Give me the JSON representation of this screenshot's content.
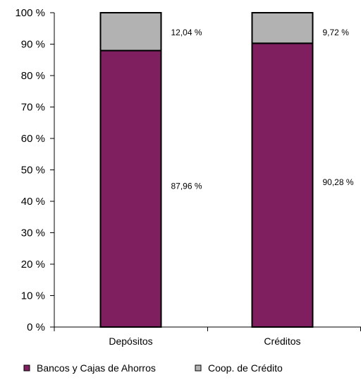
{
  "chart_data": {
    "type": "bar",
    "stacked": true,
    "percent": true,
    "categories": [
      "Depósitos",
      "Créditos"
    ],
    "series": [
      {
        "name": "Bancos y Cajas de Ahorros",
        "values": [
          87.96,
          90.28
        ],
        "labels": [
          "87,96 %",
          "90,28 %"
        ],
        "color": "#7f1f5f"
      },
      {
        "name": "Coop. de Crédito",
        "values": [
          12.04,
          9.72
        ],
        "labels": [
          "12,04 %",
          "9,72 %"
        ],
        "color": "#b2b2b2"
      }
    ],
    "ylim": [
      0,
      100
    ],
    "yticks": [
      0,
      10,
      20,
      30,
      40,
      50,
      60,
      70,
      80,
      90,
      100
    ],
    "ytick_labels": [
      "0 %",
      "10 %",
      "20 %",
      "30 %",
      "40 %",
      "50 %",
      "60 %",
      "70 %",
      "80 %",
      "90 %",
      "100 %"
    ],
    "title": "",
    "xlabel": "",
    "ylabel": "",
    "grid": false,
    "legend_position": "bottom"
  }
}
